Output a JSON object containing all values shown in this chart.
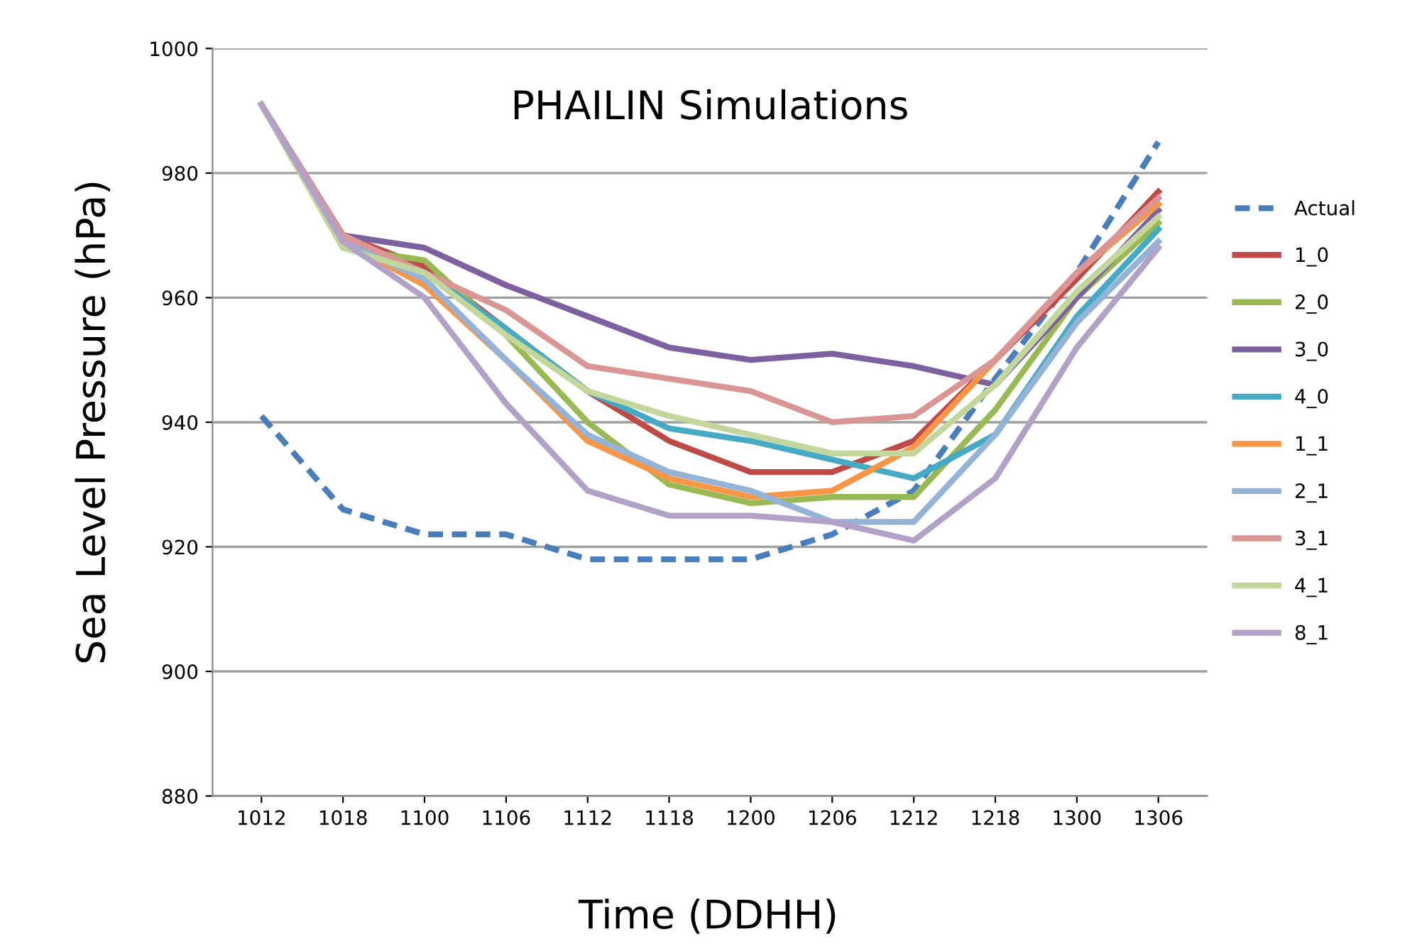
{
  "chart_data": {
    "type": "line",
    "title": "PHAILIN Simulations",
    "xlabel": "Time (DDHH)",
    "ylabel": "Sea Level Pressure (hPa)",
    "categories": [
      "1012",
      "1018",
      "1100",
      "1106",
      "1112",
      "1118",
      "1200",
      "1206",
      "1212",
      "1218",
      "1300",
      "1306"
    ],
    "ylim": [
      880,
      1000
    ],
    "yticks": [
      880,
      900,
      920,
      940,
      960,
      980,
      1000
    ],
    "grid": "y",
    "legend": "right",
    "marker": "none",
    "series": [
      {
        "name": "Actual",
        "color": "#4a7ebb",
        "line_style": "dashed",
        "values": [
          941,
          926,
          922,
          922,
          918,
          918,
          918,
          922,
          929,
          947,
          964,
          985
        ]
      },
      {
        "name": "1_0",
        "color": "#be4b48",
        "values": [
          991,
          970,
          965,
          955,
          945,
          937,
          932,
          932,
          937,
          950,
          963,
          977
        ]
      },
      {
        "name": "2_0",
        "color": "#98b954",
        "values": [
          991,
          968,
          966,
          954,
          940,
          930,
          927,
          928,
          928,
          942,
          960,
          972
        ]
      },
      {
        "name": "3_0",
        "color": "#7d60a0",
        "values": [
          991,
          970,
          968,
          962,
          957,
          952,
          950,
          951,
          949,
          946,
          960,
          974
        ]
      },
      {
        "name": "4_0",
        "color": "#46aac5",
        "values": [
          991,
          969,
          964,
          955,
          945,
          939,
          937,
          934,
          931,
          938,
          957,
          971
        ]
      },
      {
        "name": "1_1",
        "color": "#f79646",
        "values": [
          991,
          969,
          962,
          950,
          937,
          931,
          928,
          929,
          936,
          950,
          964,
          975
        ]
      },
      {
        "name": "2_1",
        "color": "#95b3d7",
        "values": [
          991,
          969,
          963,
          950,
          938,
          932,
          929,
          924,
          924,
          938,
          956,
          969
        ]
      },
      {
        "name": "3_1",
        "color": "#d99694",
        "values": [
          991,
          970,
          964,
          958,
          949,
          947,
          945,
          940,
          941,
          950,
          964,
          976
        ]
      },
      {
        "name": "4_1",
        "color": "#c3d69b",
        "values": [
          991,
          968,
          964,
          954,
          945,
          941,
          938,
          935,
          935,
          946,
          961,
          973
        ]
      },
      {
        "name": "8_1",
        "color": "#b3a2c7",
        "values": [
          991,
          969,
          960,
          943,
          929,
          925,
          925,
          924,
          921,
          931,
          952,
          968
        ]
      }
    ]
  }
}
